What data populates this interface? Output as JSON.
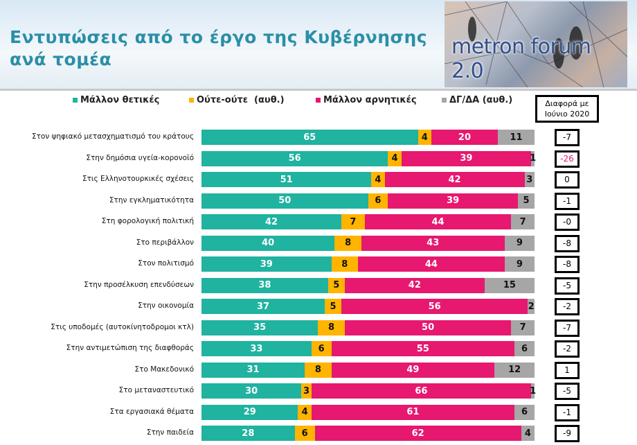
{
  "header": {
    "title_line1": "Εντυπώσεις από το έργο της Κυβέρνησης",
    "title_line2": "ανά τομέα",
    "logo_text": "metron forum 2.0"
  },
  "diff_header": {
    "line1": "Διαφορά με",
    "line2": "Ιούνιο 2020"
  },
  "chart_data": {
    "type": "bar",
    "stacked": true,
    "orientation": "horizontal",
    "colors": {
      "positive": "#1fb3a0",
      "neutral": "#ffb400",
      "negative": "#e6186f",
      "dk": "#a6a6a6"
    },
    "series": [
      {
        "name": "Μάλλον θετικές",
        "values": [
          65,
          56,
          51,
          50,
          42,
          40,
          39,
          38,
          37,
          35,
          33,
          31,
          30,
          29,
          28
        ]
      },
      {
        "name": "Ούτε-ούτε  (αυθ.)",
        "values": [
          4,
          4,
          4,
          6,
          7,
          8,
          8,
          5,
          5,
          8,
          6,
          8,
          3,
          4,
          6
        ]
      },
      {
        "name": "Μάλλον αρνητικές",
        "values": [
          20,
          39,
          42,
          39,
          44,
          43,
          44,
          42,
          56,
          50,
          55,
          49,
          66,
          61,
          62
        ]
      },
      {
        "name": "ΔΓ/ΔΑ (αυθ.)",
        "values": [
          11,
          1,
          3,
          5,
          7,
          9,
          9,
          15,
          2,
          7,
          6,
          12,
          1,
          6,
          4
        ]
      }
    ],
    "categories": [
      "Στον ψηφιακό μετασχηματισμό του κράτους",
      "Στην δημόσια υγεία-κορονοϊό",
      "Στις Ελληνοτουρκικές σχέσεις",
      "Στην εγκληματικότητα",
      "Στη φορολογική πολιτική",
      "Στο περιβάλλον",
      "Στον πολιτισμό",
      "Στην προσέλκυση επενδύσεων",
      "Στην οικονομία",
      "Στις υποδομές (αυτοκίνητοδρομοι κτλ)",
      "Στην αντιμετώπιση της διαφθοράς",
      "Στο Μακεδονικό",
      "Στο μεταναστευτικό",
      "Στα εργασιακά θέματα",
      "Στην παιδεία"
    ],
    "diff_june_2020": [
      "-7",
      "-26",
      "0",
      "-1",
      "-0",
      "-8",
      "-8",
      "-5",
      "-2",
      "-7",
      "-2",
      "1",
      "-5",
      "-1",
      "-9"
    ],
    "diff_highlight_color": "#e6186f",
    "legend": "top"
  }
}
